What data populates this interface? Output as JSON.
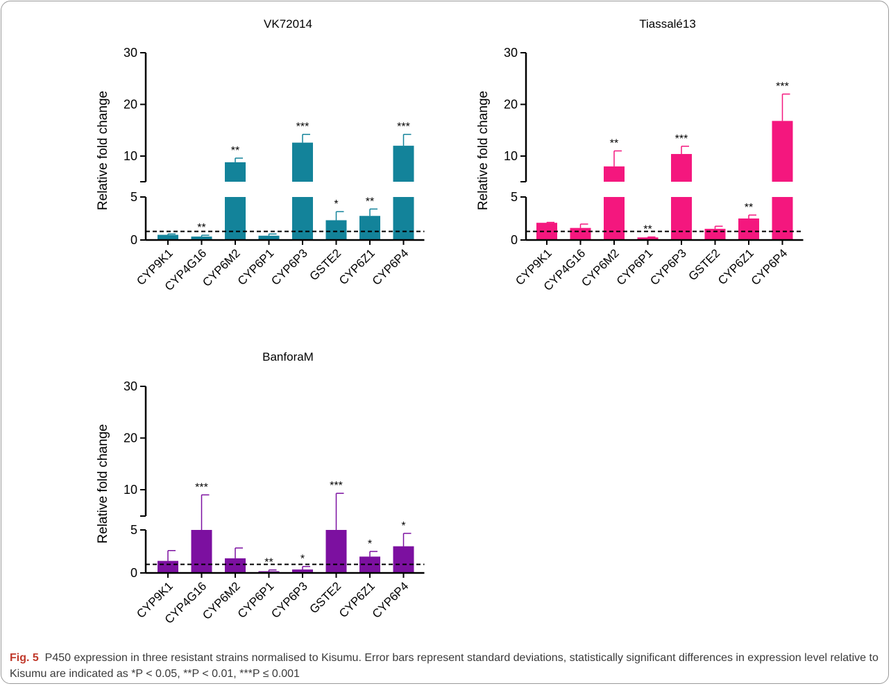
{
  "figure": {
    "caption_label": "Fig. 5",
    "caption_text": "P450 expression in three resistant strains normalised to Kisumu. Error bars represent standard deviations, statistically significant differences in expression level relative to Kisumu are indicated as *P < 0.05, **P < 0.01, ***P ≤ 0.001"
  },
  "chart_data": [
    {
      "type": "bar",
      "title": "VK72014",
      "ylabel": "Relative fold change",
      "color": "#13839A",
      "categories": [
        "CYP9K1",
        "CYP4G16",
        "CYP6M2",
        "CYP6P1",
        "CYP6P3",
        "GSTE2",
        "CYP6Z1",
        "CYP6P4"
      ],
      "values": [
        0.6,
        0.4,
        8.8,
        0.5,
        12.6,
        2.3,
        2.8,
        12.0
      ],
      "errors": [
        0.1,
        0.15,
        0.8,
        0.2,
        1.6,
        1.0,
        0.8,
        2.2
      ],
      "significance": [
        "",
        "**",
        "**",
        "",
        "***",
        "*",
        "**",
        "***"
      ],
      "yticks": [
        0,
        5,
        10,
        20,
        30
      ],
      "axis_break": [
        5,
        8
      ],
      "reference_line": 1
    },
    {
      "type": "bar",
      "title": "Tiassalé13",
      "ylabel": "Relative fold change",
      "color": "#F4177E",
      "categories": [
        "CYP9K1",
        "CYP4G16",
        "CYP6M2",
        "CYP6P1",
        "CYP6P3",
        "GSTE2",
        "CYP6Z1",
        "CYP6P4"
      ],
      "values": [
        2.0,
        1.4,
        8.0,
        0.3,
        10.4,
        1.3,
        2.5,
        16.8
      ],
      "errors": [
        0.05,
        0.45,
        3.0,
        0.05,
        1.5,
        0.3,
        0.4,
        5.2
      ],
      "significance": [
        "",
        "",
        "**",
        "**",
        "***",
        "",
        "**",
        "***"
      ],
      "yticks": [
        0,
        5,
        10,
        20,
        30
      ],
      "axis_break": [
        5,
        8
      ],
      "reference_line": 1
    },
    {
      "type": "bar",
      "title": "BanforaM",
      "ylabel": "Relative fold change",
      "color": "#7C10A0",
      "categories": [
        "CYP9K1",
        "CYP4G16",
        "CYP6M2",
        "CYP6P1",
        "CYP6P3",
        "GSTE2",
        "CYP6Z1",
        "CYP6P4"
      ],
      "values": [
        1.4,
        7.4,
        1.7,
        0.2,
        0.4,
        7.8,
        1.9,
        3.1
      ],
      "errors": [
        1.2,
        1.6,
        1.2,
        0.15,
        0.35,
        1.5,
        0.6,
        1.5
      ],
      "significance": [
        "",
        "***",
        "",
        "**",
        "*",
        "***",
        "*",
        "*"
      ],
      "yticks": [
        0,
        5,
        10,
        20,
        30
      ],
      "axis_break": [
        5,
        8
      ],
      "reference_line": 1
    }
  ]
}
